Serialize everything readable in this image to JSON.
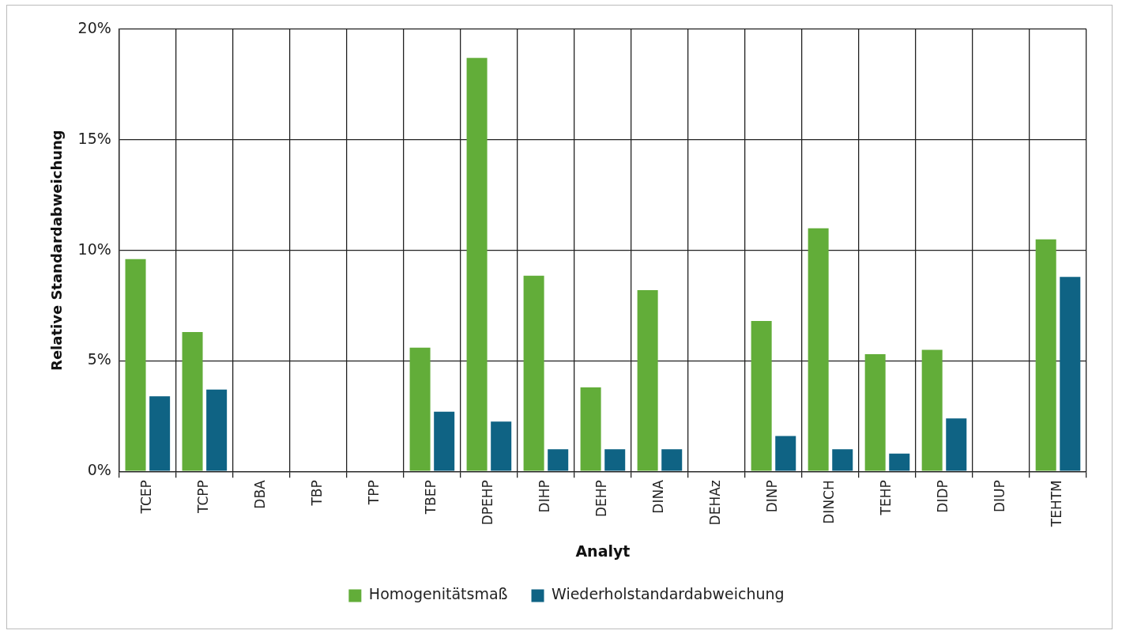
{
  "chart_data": {
    "type": "bar",
    "xlabel": "Analyt",
    "ylabel": "Relative Standardabweichung",
    "categories": [
      "TCEP",
      "TCPP",
      "DBA",
      "TBP",
      "TPP",
      "TBEP",
      "DPEHP",
      "DIHP",
      "DEHP",
      "DINA",
      "DEHAz",
      "DINP",
      "DINCH",
      "TEHP",
      "DIDP",
      "DIUP",
      "TEHTM"
    ],
    "series": [
      {
        "name": "Homogenitätsmaß",
        "color": "#62ad39",
        "values": [
          9.6,
          6.3,
          null,
          null,
          null,
          5.6,
          18.7,
          8.85,
          3.8,
          8.2,
          null,
          6.8,
          11.0,
          5.3,
          5.5,
          null,
          10.5
        ]
      },
      {
        "name": "Wiederholstandardabweichung",
        "color": "#0f6384",
        "values": [
          3.4,
          3.7,
          null,
          null,
          null,
          2.7,
          2.25,
          1.0,
          1.0,
          1.0,
          null,
          1.6,
          1.0,
          0.8,
          2.4,
          null,
          8.8
        ]
      }
    ],
    "ylim": [
      0,
      20
    ],
    "yticks": [
      {
        "value": 0,
        "label": "0%"
      },
      {
        "value": 5,
        "label": "5%"
      },
      {
        "value": 10,
        "label": "10%"
      },
      {
        "value": 15,
        "label": "15%"
      },
      {
        "value": 20,
        "label": "20%"
      }
    ],
    "grid": true,
    "legend": "bottom"
  }
}
